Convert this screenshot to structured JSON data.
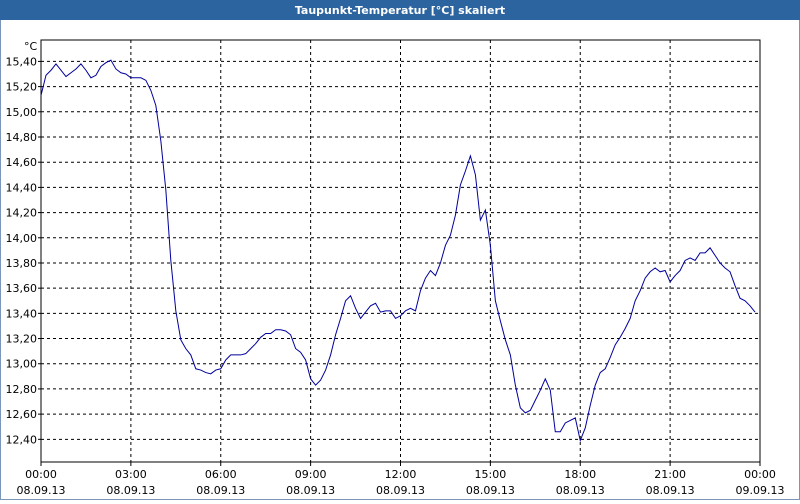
{
  "chart_data": {
    "type": "line",
    "title": "Taupunkt-Temperatur [°C] skaliert",
    "y_unit": "°C",
    "x": [
      0,
      10,
      20,
      30,
      40,
      50,
      60,
      70,
      80,
      90,
      100,
      110,
      120,
      130,
      140,
      150,
      160,
      170,
      180,
      190,
      200,
      210,
      220,
      230,
      240,
      250,
      260,
      270,
      280,
      290,
      300,
      310,
      320,
      330,
      340,
      350,
      360,
      370,
      380,
      390,
      400,
      410,
      420,
      430,
      440,
      450,
      460,
      470,
      480,
      490,
      500,
      510,
      520,
      530,
      540,
      550,
      560,
      570,
      580,
      590,
      600,
      610,
      620,
      630,
      640,
      650,
      660,
      670,
      680,
      690,
      700,
      710,
      720,
      730,
      740,
      750,
      760,
      770,
      780,
      790,
      800,
      810,
      820,
      830,
      840,
      850,
      860,
      870,
      880,
      890,
      900,
      910,
      920,
      930,
      940,
      950,
      960,
      970,
      980,
      990,
      1000,
      1010,
      1020,
      1030,
      1040,
      1050,
      1060,
      1070,
      1080,
      1090,
      1100,
      1110,
      1120,
      1130,
      1140,
      1150,
      1160,
      1170,
      1180,
      1190,
      1200,
      1210,
      1220,
      1230,
      1240,
      1250,
      1260,
      1270,
      1280,
      1290,
      1300,
      1310,
      1320,
      1330,
      1340,
      1350,
      1360,
      1370,
      1380,
      1390,
      1400,
      1410,
      1420,
      1430
    ],
    "series": [
      {
        "color": "#00009c",
        "values": [
          15.13,
          15.29,
          15.33,
          15.38,
          15.33,
          15.28,
          15.31,
          15.34,
          15.38,
          15.33,
          15.27,
          15.29,
          15.36,
          15.39,
          15.41,
          15.34,
          15.31,
          15.3,
          15.27,
          15.27,
          15.27,
          15.25,
          15.17,
          15.05,
          14.77,
          14.38,
          13.82,
          13.42,
          13.19,
          13.12,
          13.07,
          12.96,
          12.95,
          12.93,
          12.92,
          12.95,
          12.96,
          13.03,
          13.07,
          13.07,
          13.07,
          13.08,
          13.12,
          13.16,
          13.21,
          13.24,
          13.24,
          13.27,
          13.27,
          13.26,
          13.23,
          13.12,
          13.09,
          13.03,
          12.88,
          12.83,
          12.87,
          12.95,
          13.07,
          13.23,
          13.36,
          13.5,
          13.54,
          13.44,
          13.36,
          13.41,
          13.46,
          13.48,
          13.41,
          13.42,
          13.42,
          13.36,
          13.38,
          13.42,
          13.44,
          13.42,
          13.58,
          13.68,
          13.74,
          13.7,
          13.8,
          13.94,
          14.02,
          14.18,
          14.42,
          14.53,
          14.65,
          14.5,
          14.14,
          14.22,
          13.94,
          13.5,
          13.34,
          13.19,
          13.07,
          12.83,
          12.65,
          12.61,
          12.63,
          12.71,
          12.79,
          12.88,
          12.79,
          12.46,
          12.46,
          12.53,
          12.55,
          12.57,
          12.39,
          12.49,
          12.67,
          12.83,
          12.93,
          12.96,
          13.05,
          13.15,
          13.21,
          13.28,
          13.36,
          13.5,
          13.58,
          13.68,
          13.73,
          13.76,
          13.73,
          13.74,
          13.65,
          13.7,
          13.74,
          13.82,
          13.84,
          13.82,
          13.88,
          13.88,
          13.92,
          13.86,
          13.8,
          13.76,
          13.73,
          13.62,
          13.52,
          13.5,
          13.46,
          13.41
        ]
      }
    ],
    "xlim": [
      0,
      1440
    ],
    "xticks": [
      {
        "value": 0,
        "label": "00:00",
        "date": "08.09.13"
      },
      {
        "value": 180,
        "label": "03:00",
        "date": "08.09.13"
      },
      {
        "value": 360,
        "label": "06:00",
        "date": "08.09.13"
      },
      {
        "value": 540,
        "label": "09:00",
        "date": "08.09.13"
      },
      {
        "value": 720,
        "label": "12:00",
        "date": "08.09.13"
      },
      {
        "value": 900,
        "label": "15:00",
        "date": "08.09.13"
      },
      {
        "value": 1080,
        "label": "18:00",
        "date": "08.09.13"
      },
      {
        "value": 1260,
        "label": "21:00",
        "date": "08.09.13"
      },
      {
        "value": 1440,
        "label": "00:00",
        "date": "09.09.13"
      }
    ],
    "ylim": [
      12.22,
      15.57
    ],
    "yticks": [
      {
        "value": 12.4,
        "label": "12,40"
      },
      {
        "value": 12.6,
        "label": "12,60"
      },
      {
        "value": 12.8,
        "label": "12,80"
      },
      {
        "value": 13.0,
        "label": "13,00"
      },
      {
        "value": 13.2,
        "label": "13,20"
      },
      {
        "value": 13.4,
        "label": "13,40"
      },
      {
        "value": 13.6,
        "label": "13,60"
      },
      {
        "value": 13.8,
        "label": "13,80"
      },
      {
        "value": 14.0,
        "label": "14,00"
      },
      {
        "value": 14.2,
        "label": "14,20"
      },
      {
        "value": 14.4,
        "label": "14,40"
      },
      {
        "value": 14.6,
        "label": "14,60"
      },
      {
        "value": 14.8,
        "label": "14,80"
      },
      {
        "value": 15.0,
        "label": "15,00"
      },
      {
        "value": 15.2,
        "label": "15,20"
      },
      {
        "value": 15.4,
        "label": "15,40"
      }
    ],
    "grid": true
  }
}
